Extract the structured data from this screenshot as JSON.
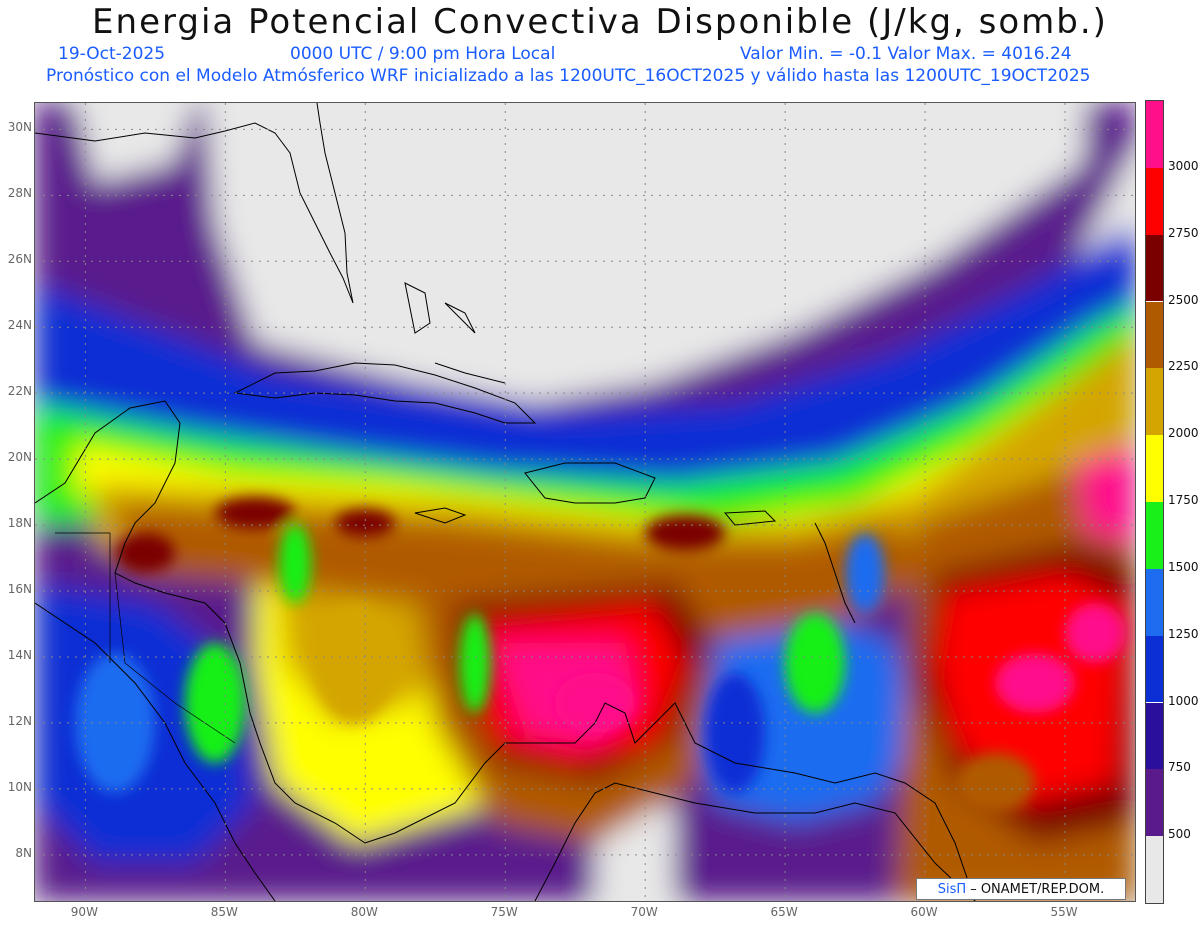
{
  "title": "Energia Potencial Convectiva Disponible (J/kg, somb.)",
  "date_label": "19-Oct-2025",
  "time_label": "0000 UTC / 9:00 pm Hora Local",
  "minmax_label": "Valor Min. = -0.1  Valor Max. = 4016.24",
  "description": "Pronóstico con el Modelo Atmósferico WRF inicializado a las 1200UTC_16OCT2025 y válido hasta las  1200UTC_19OCT2025",
  "credit": {
    "brand": "SisΠ",
    "text": "– ONAMET/REP.DOM."
  },
  "lat_labels": [
    "30N",
    "28N",
    "26N",
    "24N",
    "22N",
    "20N",
    "18N",
    "16N",
    "14N",
    "12N",
    "10N",
    "8N"
  ],
  "lat_values": [
    30,
    28,
    26,
    24,
    22,
    20,
    18,
    16,
    14,
    12,
    10,
    8
  ],
  "lon_labels": [
    "90W",
    "85W",
    "80W",
    "75W",
    "70W",
    "65W",
    "60W",
    "55W"
  ],
  "lon_values": [
    -90,
    -85,
    -80,
    -75,
    -70,
    -65,
    -60,
    -55
  ],
  "colorbar": {
    "labels": [
      "3000",
      "2750",
      "2500",
      "2250",
      "2000",
      "1750",
      "1500",
      "1250",
      "1000",
      "750",
      "500"
    ],
    "levels": [
      0,
      500,
      750,
      1000,
      1250,
      1500,
      1750,
      2000,
      2250,
      2500,
      2750,
      3000
    ],
    "colors": [
      "#e8e8e8",
      "#5a1a8c",
      "#2a0f9c",
      "#0a2fd4",
      "#1e6cf0",
      "#19f019",
      "#ffff00",
      "#d4a500",
      "#b05a00",
      "#7a0000",
      "#ff0000",
      "#ff0f8a"
    ]
  }
}
